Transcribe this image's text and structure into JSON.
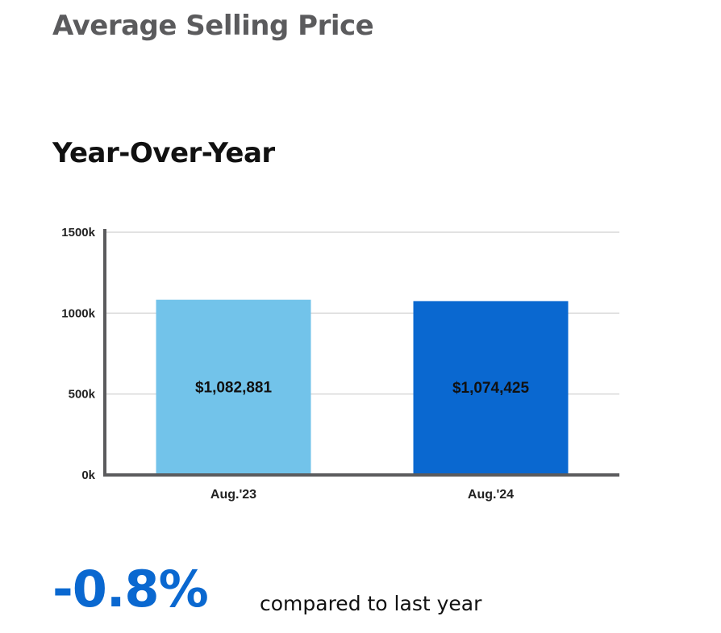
{
  "header": {
    "title": "Average Selling Price",
    "subtitle": "Year-Over-Year"
  },
  "summary": {
    "change": "-0.8%",
    "compare_text": "compared to last year"
  },
  "colors": {
    "bar_previous": "#72c3ea",
    "bar_current": "#0a68d0",
    "change_text": "#0a68d0"
  },
  "chart_data": {
    "type": "bar",
    "categories": [
      "Aug.'23",
      "Aug.'24"
    ],
    "values": [
      1082881,
      1074425
    ],
    "data_labels": [
      "$1,082,881",
      "$1,074,425"
    ],
    "ylim": [
      0,
      1500000
    ],
    "yticks": [
      0,
      500000,
      1000000,
      1500000
    ],
    "ytick_labels": [
      "0k",
      "500k",
      "1000k",
      "1500k"
    ],
    "xlabel": "",
    "ylabel": "",
    "grid": true,
    "legend": "none"
  }
}
